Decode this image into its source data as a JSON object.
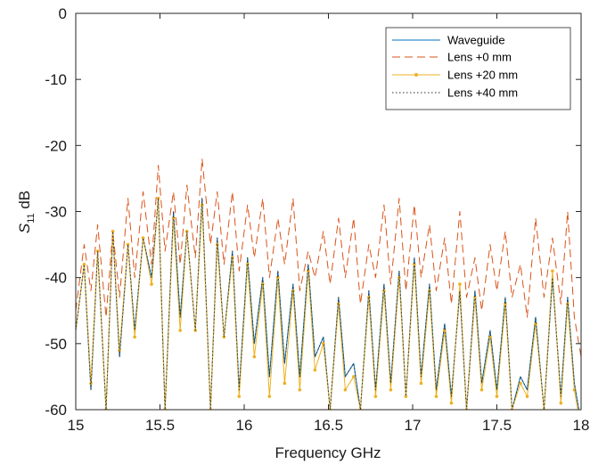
{
  "chart_data": {
    "type": "line",
    "xlabel": "Frequency GHz",
    "ylabel_main": "S",
    "ylabel_sub": "11",
    "ylabel_unit": " dB",
    "xlim": [
      15,
      18
    ],
    "ylim": [
      -60,
      0
    ],
    "xticks": [
      15,
      15.5,
      16,
      16.5,
      17,
      17.5,
      18
    ],
    "xtick_labels": [
      "15",
      "15.5",
      "16",
      "16.5",
      "17",
      "17.5",
      "18"
    ],
    "yticks": [
      0,
      -10,
      -20,
      -30,
      -40,
      -50,
      -60
    ],
    "ytick_labels": [
      "0",
      "-10",
      "-20",
      "-30",
      "-40",
      "-50",
      "-60"
    ],
    "legend_position": "top-right",
    "series": [
      {
        "name": "Waveguide",
        "color": "#0072BD",
        "style": "solid",
        "peaks": [
          [
            15.05,
            -38
          ],
          [
            15.13,
            -36
          ],
          [
            15.22,
            -33
          ],
          [
            15.31,
            -35
          ],
          [
            15.4,
            -34
          ],
          [
            15.49,
            -28
          ],
          [
            15.58,
            -30
          ],
          [
            15.66,
            -33
          ],
          [
            15.75,
            -28
          ],
          [
            15.84,
            -34
          ],
          [
            15.93,
            -36
          ],
          [
            16.02,
            -37
          ],
          [
            16.11,
            -40
          ],
          [
            16.2,
            -39
          ],
          [
            16.29,
            -41
          ],
          [
            16.38,
            -38
          ],
          [
            16.47,
            -49
          ],
          [
            16.56,
            -43
          ],
          [
            16.65,
            -53
          ],
          [
            16.74,
            -42
          ],
          [
            16.83,
            -41
          ],
          [
            16.92,
            -39
          ],
          [
            17.01,
            -37
          ],
          [
            17.1,
            -41
          ],
          [
            17.19,
            -47
          ],
          [
            17.28,
            -42
          ],
          [
            17.37,
            -42
          ],
          [
            17.46,
            -48
          ],
          [
            17.55,
            -43
          ],
          [
            17.64,
            -55
          ],
          [
            17.73,
            -46
          ],
          [
            17.83,
            -40
          ],
          [
            17.92,
            -43
          ]
        ],
        "troughs": [
          [
            15.09,
            -57
          ],
          [
            15.18,
            -60
          ],
          [
            15.26,
            -52
          ],
          [
            15.35,
            -48
          ],
          [
            15.45,
            -40
          ],
          [
            15.53,
            -60
          ],
          [
            15.62,
            -46
          ],
          [
            15.71,
            -48
          ],
          [
            15.8,
            -60
          ],
          [
            15.88,
            -49
          ],
          [
            15.97,
            -57
          ],
          [
            16.06,
            -50
          ],
          [
            16.15,
            -55
          ],
          [
            16.24,
            -53
          ],
          [
            16.33,
            -55
          ],
          [
            16.42,
            -52
          ],
          [
            16.51,
            -60
          ],
          [
            16.6,
            -55
          ],
          [
            16.69,
            -60
          ],
          [
            16.78,
            -57
          ],
          [
            16.87,
            -56
          ],
          [
            16.96,
            -58
          ],
          [
            17.05,
            -55
          ],
          [
            17.14,
            -57
          ],
          [
            17.23,
            -58
          ],
          [
            17.32,
            -60
          ],
          [
            17.41,
            -56
          ],
          [
            17.5,
            -57
          ],
          [
            17.59,
            -60
          ],
          [
            17.68,
            -57
          ],
          [
            17.78,
            -60
          ],
          [
            17.88,
            -58
          ],
          [
            17.96,
            -56
          ]
        ]
      },
      {
        "name": "Lens +0 mm",
        "color": "#D95319",
        "style": "dashed",
        "peaks": [
          [
            15.05,
            -35
          ],
          [
            15.13,
            -32
          ],
          [
            15.22,
            -33
          ],
          [
            15.31,
            -28
          ],
          [
            15.4,
            -27
          ],
          [
            15.49,
            -23
          ],
          [
            15.58,
            -27
          ],
          [
            15.66,
            -26
          ],
          [
            15.75,
            -22
          ],
          [
            15.84,
            -27
          ],
          [
            15.93,
            -27
          ],
          [
            16.02,
            -29
          ],
          [
            16.11,
            -28
          ],
          [
            16.2,
            -31
          ],
          [
            16.29,
            -28
          ],
          [
            16.38,
            -36
          ],
          [
            16.47,
            -33
          ],
          [
            16.56,
            -31
          ],
          [
            16.65,
            -31
          ],
          [
            16.74,
            -35
          ],
          [
            16.83,
            -29
          ],
          [
            16.92,
            -28
          ],
          [
            17.01,
            -29
          ],
          [
            17.1,
            -32
          ],
          [
            17.19,
            -34
          ],
          [
            17.28,
            -30
          ],
          [
            17.37,
            -37
          ],
          [
            17.46,
            -35
          ],
          [
            17.55,
            -33
          ],
          [
            17.64,
            -38
          ],
          [
            17.73,
            -31
          ],
          [
            17.83,
            -34
          ],
          [
            17.92,
            -30
          ]
        ],
        "troughs": [
          [
            15.09,
            -42
          ],
          [
            15.18,
            -46
          ],
          [
            15.26,
            -43
          ],
          [
            15.35,
            -40
          ],
          [
            15.45,
            -38
          ],
          [
            15.53,
            -36
          ],
          [
            15.62,
            -38
          ],
          [
            15.71,
            -37
          ],
          [
            15.8,
            -35
          ],
          [
            15.88,
            -38
          ],
          [
            15.97,
            -39
          ],
          [
            16.06,
            -37
          ],
          [
            16.15,
            -40
          ],
          [
            16.24,
            -38
          ],
          [
            16.33,
            -42
          ],
          [
            16.42,
            -40
          ],
          [
            16.51,
            -41
          ],
          [
            16.6,
            -40
          ],
          [
            16.69,
            -44
          ],
          [
            16.78,
            -40
          ],
          [
            16.87,
            -41
          ],
          [
            16.96,
            -42
          ],
          [
            17.05,
            -40
          ],
          [
            17.14,
            -42
          ],
          [
            17.23,
            -44
          ],
          [
            17.32,
            -43
          ],
          [
            17.41,
            -45
          ],
          [
            17.5,
            -42
          ],
          [
            17.59,
            -43
          ],
          [
            17.68,
            -46
          ],
          [
            17.78,
            -43
          ],
          [
            17.88,
            -44
          ],
          [
            17.96,
            -46
          ]
        ]
      },
      {
        "name": "Lens +20 mm",
        "color": "#EDB120",
        "style": "solid-marker",
        "peaks": [
          [
            15.05,
            -38
          ],
          [
            15.13,
            -36
          ],
          [
            15.22,
            -33
          ],
          [
            15.31,
            -35
          ],
          [
            15.4,
            -34
          ],
          [
            15.49,
            -28
          ],
          [
            15.58,
            -31
          ],
          [
            15.66,
            -33
          ],
          [
            15.75,
            -29
          ],
          [
            15.84,
            -35
          ],
          [
            15.93,
            -37
          ],
          [
            16.02,
            -38
          ],
          [
            16.11,
            -41
          ],
          [
            16.2,
            -40
          ],
          [
            16.29,
            -42
          ],
          [
            16.38,
            -39
          ],
          [
            16.47,
            -50
          ],
          [
            16.56,
            -44
          ],
          [
            16.65,
            -55
          ],
          [
            16.74,
            -43
          ],
          [
            16.83,
            -42
          ],
          [
            16.92,
            -40
          ],
          [
            17.01,
            -38
          ],
          [
            17.1,
            -42
          ],
          [
            17.19,
            -48
          ],
          [
            17.28,
            -41
          ],
          [
            17.37,
            -43
          ],
          [
            17.46,
            -49
          ],
          [
            17.55,
            -44
          ],
          [
            17.64,
            -56
          ],
          [
            17.73,
            -47
          ],
          [
            17.83,
            -39
          ],
          [
            17.92,
            -44
          ]
        ],
        "troughs": [
          [
            15.09,
            -56
          ],
          [
            15.18,
            -60
          ],
          [
            15.26,
            -51
          ],
          [
            15.35,
            -49
          ],
          [
            15.45,
            -41
          ],
          [
            15.53,
            -60
          ],
          [
            15.62,
            -48
          ],
          [
            15.71,
            -48
          ],
          [
            15.8,
            -60
          ],
          [
            15.88,
            -49
          ],
          [
            15.97,
            -58
          ],
          [
            16.06,
            -52
          ],
          [
            16.15,
            -58
          ],
          [
            16.24,
            -56
          ],
          [
            16.33,
            -57
          ],
          [
            16.42,
            -54
          ],
          [
            16.51,
            -60
          ],
          [
            16.6,
            -57
          ],
          [
            16.69,
            -60
          ],
          [
            16.78,
            -58
          ],
          [
            16.87,
            -57
          ],
          [
            16.96,
            -58
          ],
          [
            17.05,
            -56
          ],
          [
            17.14,
            -58
          ],
          [
            17.23,
            -59
          ],
          [
            17.32,
            -60
          ],
          [
            17.41,
            -57
          ],
          [
            17.5,
            -58
          ],
          [
            17.59,
            -60
          ],
          [
            17.68,
            -58
          ],
          [
            17.78,
            -60
          ],
          [
            17.88,
            -59
          ],
          [
            17.96,
            -57
          ]
        ]
      },
      {
        "name": "Lens +40 mm",
        "color": "#333333",
        "style": "dotted",
        "peaks": [
          [
            15.05,
            -38
          ],
          [
            15.13,
            -36
          ],
          [
            15.22,
            -33
          ],
          [
            15.31,
            -35
          ],
          [
            15.4,
            -34
          ],
          [
            15.49,
            -28
          ],
          [
            15.58,
            -30
          ],
          [
            15.66,
            -33
          ],
          [
            15.75,
            -28
          ],
          [
            15.84,
            -34
          ],
          [
            15.93,
            -36
          ],
          [
            16.02,
            -37
          ],
          [
            16.11,
            -40
          ],
          [
            16.2,
            -39
          ],
          [
            16.29,
            -41
          ],
          [
            16.38,
            -38
          ],
          [
            16.47,
            -49
          ],
          [
            16.56,
            -43
          ],
          [
            16.65,
            -53
          ],
          [
            16.74,
            -42
          ],
          [
            16.83,
            -41
          ],
          [
            16.92,
            -39
          ],
          [
            17.01,
            -37
          ],
          [
            17.1,
            -41
          ],
          [
            17.19,
            -47
          ],
          [
            17.28,
            -42
          ],
          [
            17.37,
            -42
          ],
          [
            17.46,
            -48
          ],
          [
            17.55,
            -43
          ],
          [
            17.64,
            -55
          ],
          [
            17.73,
            -46
          ],
          [
            17.83,
            -40
          ],
          [
            17.92,
            -43
          ]
        ],
        "troughs": [
          [
            15.09,
            -57
          ],
          [
            15.18,
            -60
          ],
          [
            15.26,
            -52
          ],
          [
            15.35,
            -48
          ],
          [
            15.45,
            -40
          ],
          [
            15.53,
            -60
          ],
          [
            15.62,
            -46
          ],
          [
            15.71,
            -48
          ],
          [
            15.8,
            -60
          ],
          [
            15.88,
            -49
          ],
          [
            15.97,
            -57
          ],
          [
            16.06,
            -50
          ],
          [
            16.15,
            -55
          ],
          [
            16.24,
            -53
          ],
          [
            16.33,
            -55
          ],
          [
            16.42,
            -52
          ],
          [
            16.51,
            -60
          ],
          [
            16.6,
            -55
          ],
          [
            16.69,
            -60
          ],
          [
            16.78,
            -57
          ],
          [
            16.87,
            -56
          ],
          [
            16.96,
            -58
          ],
          [
            17.05,
            -55
          ],
          [
            17.14,
            -57
          ],
          [
            17.23,
            -58
          ],
          [
            17.32,
            -60
          ],
          [
            17.41,
            -56
          ],
          [
            17.5,
            -57
          ],
          [
            17.59,
            -60
          ],
          [
            17.68,
            -57
          ],
          [
            17.78,
            -60
          ],
          [
            17.88,
            -58
          ],
          [
            17.96,
            -56
          ]
        ]
      }
    ]
  }
}
